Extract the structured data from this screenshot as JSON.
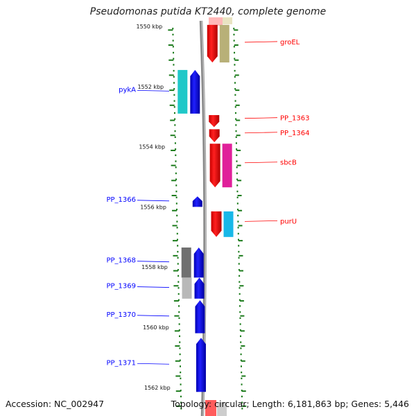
{
  "title": "Pseudomonas putida KT2440, complete genome",
  "footer": {
    "accession": "Accession: NC_002947",
    "topology": "Topology: circular; Length: 6,181,863 bp; Genes: 5,446"
  },
  "colors": {
    "reverse_strand_gene": "#ff0000",
    "forward_strand_gene": "#0000ff",
    "tick_green": "#1a7a1a",
    "backbone": "#808080"
  },
  "kbp_marks": [
    {
      "label": "1550 kbp",
      "kbp": 1550
    },
    {
      "label": "1552 kbp",
      "kbp": 1552
    },
    {
      "label": "1554 kbp",
      "kbp": 1554
    },
    {
      "label": "1556 kbp",
      "kbp": 1556
    },
    {
      "label": "1558 kbp",
      "kbp": 1558
    },
    {
      "label": "1560 kbp",
      "kbp": 1560
    },
    {
      "label": "1562 kbp",
      "kbp": 1562
    }
  ],
  "genes_right": [
    {
      "name": "groEL",
      "start_kbp": 1549.95,
      "end_kbp": 1551.2,
      "cog": "#b8b078"
    },
    {
      "name": "PP_1363",
      "start_kbp": 1552.95,
      "end_kbp": 1553.35,
      "cog": null
    },
    {
      "name": "PP_1364",
      "start_kbp": 1553.42,
      "end_kbp": 1553.85,
      "cog": null
    },
    {
      "name": "sbcB",
      "start_kbp": 1553.9,
      "end_kbp": 1555.35,
      "cog": "#e0209a"
    },
    {
      "name": "purU",
      "start_kbp": 1556.15,
      "end_kbp": 1557.0,
      "cog": "#18b8e8"
    }
  ],
  "genes_left": [
    {
      "name": "pykA",
      "start_kbp": 1551.45,
      "end_kbp": 1552.9,
      "cog": "#20c8c8"
    },
    {
      "name": "PP_1366",
      "start_kbp": 1555.65,
      "end_kbp": 1556.0,
      "cog": null
    },
    {
      "name": "PP_1368",
      "start_kbp": 1557.35,
      "end_kbp": 1558.35,
      "cog": "#707070"
    },
    {
      "name": "PP_1369",
      "start_kbp": 1558.35,
      "end_kbp": 1559.05,
      "cog": "#b8b8b8"
    },
    {
      "name": "PP_1370",
      "start_kbp": 1559.1,
      "end_kbp": 1560.2,
      "cog": null
    },
    {
      "name": "PP_1371",
      "start_kbp": 1560.35,
      "end_kbp": 1562.15,
      "cog": null
    }
  ]
}
